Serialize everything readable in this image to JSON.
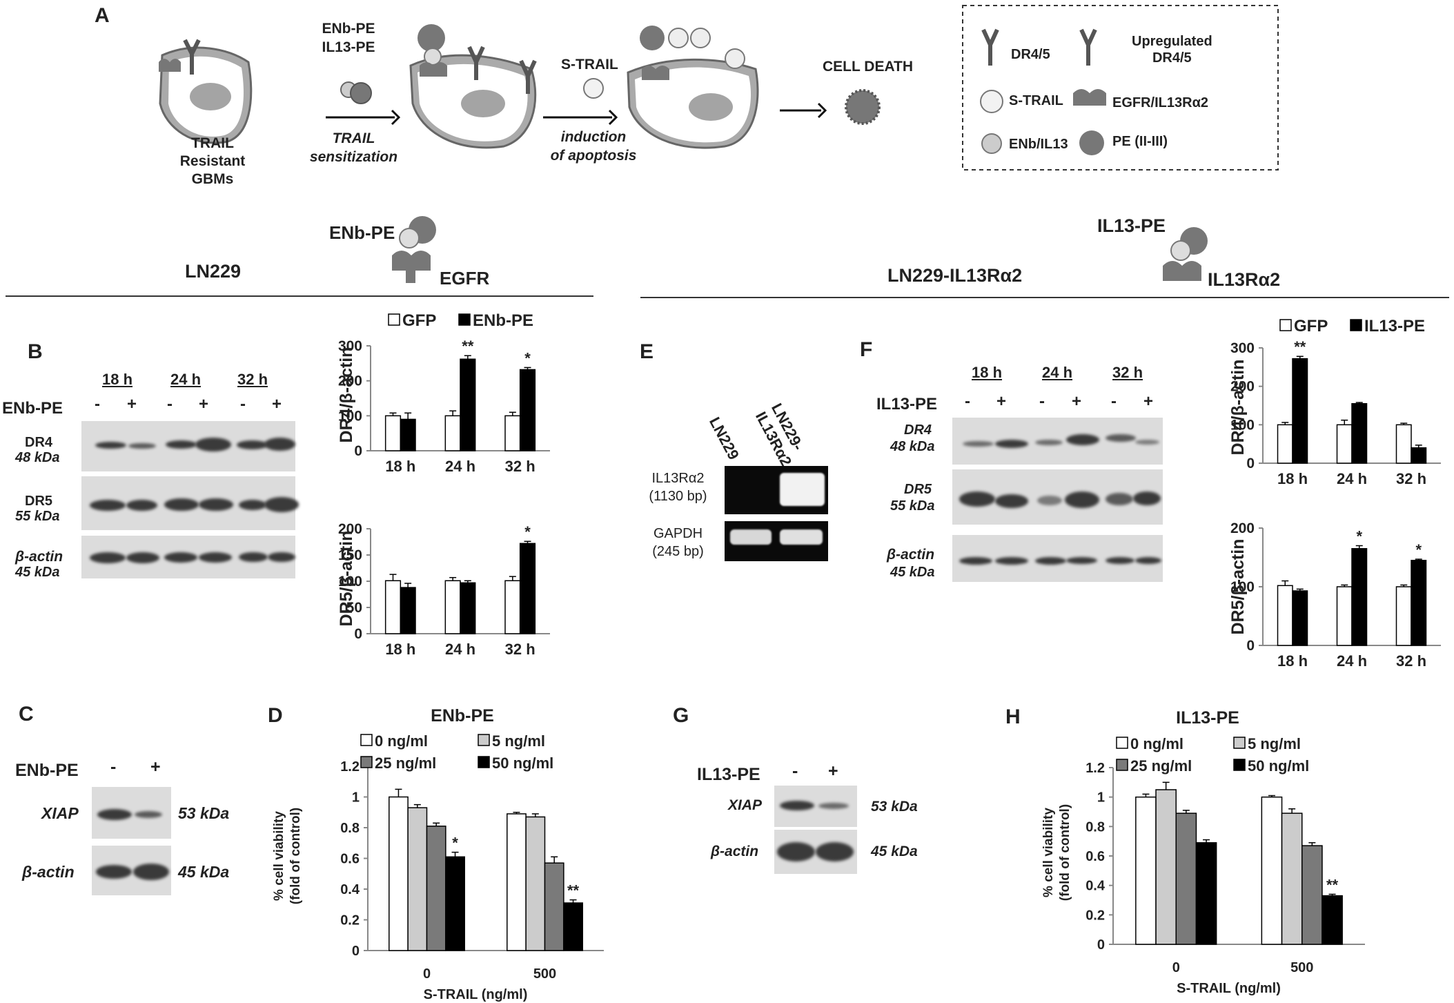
{
  "panelA": {
    "letter": "A",
    "cell1_label": [
      "TRAIL",
      "Resistant GBMs"
    ],
    "step1_top": [
      "ENb-PE",
      "IL13-PE"
    ],
    "step1_bottom": [
      "TRAIL",
      "sensitization"
    ],
    "step2_top": "S-TRAIL",
    "step2_bottom": [
      "induction",
      "of apoptosis"
    ],
    "death_label": "CELL DEATH",
    "legend": {
      "dr45": "DR4/5",
      "upreg": [
        "Upregulated",
        "DR4/5"
      ],
      "strail": "S-TRAIL",
      "egfr": "EGFR/IL13Rα2",
      "enb": "ENb/IL13",
      "pe": "PE (II-III)"
    }
  },
  "left_header": {
    "cell": "LN229",
    "toxin": "ENb-PE",
    "receptor": "EGFR"
  },
  "right_header": {
    "cell": "LN229-IL13Rα2",
    "toxin": "IL13-PE",
    "receptor": "IL13Rα2"
  },
  "panelB": {
    "letter": "B",
    "times": [
      "18 h",
      "24 h",
      "32 h"
    ],
    "treatment": "ENb-PE",
    "signs": [
      "-",
      "+",
      "-",
      "+",
      "-",
      "+"
    ],
    "rows": [
      {
        "name": "DR4",
        "kda": "48 kDa"
      },
      {
        "name": "DR5",
        "kda": "55 kDa"
      },
      {
        "name": "β-actin",
        "kda": "45 kDa"
      }
    ]
  },
  "panelE": {
    "letter": "E",
    "lanes": [
      "LN229",
      "LN229-IL13Rα2"
    ],
    "rows": [
      {
        "name": "IL13Rα2",
        "size": "(1130 bp)"
      },
      {
        "name": "GAPDH",
        "size": "(245 bp)"
      }
    ]
  },
  "panelF": {
    "letter": "F",
    "times": [
      "18 h",
      "24 h",
      "32 h"
    ],
    "treatment": "IL13-PE",
    "signs": [
      "-",
      "+",
      "-",
      "+",
      "-",
      "+"
    ],
    "rows": [
      {
        "name": "DR4",
        "kda": "48 kDa"
      },
      {
        "name": "DR5",
        "kda": "55 kDa"
      },
      {
        "name": "β-actin",
        "kda": "45 kDa"
      }
    ]
  },
  "panelC": {
    "letter": "C",
    "treatment": "ENb-PE",
    "signs": [
      "-",
      "+"
    ],
    "rows": [
      {
        "name": "XIAP",
        "kda": "53 kDa"
      },
      {
        "name": "β-actin",
        "kda": "45 kDa"
      }
    ]
  },
  "panelG": {
    "letter": "G",
    "treatment": "IL13-PE",
    "signs": [
      "-",
      "+"
    ],
    "rows": [
      {
        "name": "XIAP",
        "kda": "53 kDa"
      },
      {
        "name": "β-actin",
        "kda": "45 kDa"
      }
    ]
  },
  "panelD_letter": "D",
  "panelH_letter": "H",
  "chart_data": [
    {
      "id": "B-DR4",
      "type": "bar",
      "ylabel": "DR4/β-actin",
      "categories": [
        "18 h",
        "24 h",
        "32 h"
      ],
      "ylim": [
        0,
        300
      ],
      "yticks": [
        0,
        100,
        200,
        300
      ],
      "series": [
        {
          "name": "GFP",
          "color": "#ffffff",
          "values": [
            100,
            100,
            100
          ],
          "err": [
            8,
            14,
            10
          ]
        },
        {
          "name": "ENb-PE",
          "color": "#000000",
          "values": [
            90,
            262,
            232
          ],
          "err": [
            18,
            10,
            6
          ]
        }
      ],
      "stars": [
        "",
        "**",
        "*"
      ]
    },
    {
      "id": "B-DR5",
      "type": "bar",
      "ylabel": "DR5/β-actin",
      "categories": [
        "18 h",
        "24 h",
        "32 h"
      ],
      "ylim": [
        0,
        200
      ],
      "yticks": [
        0,
        50,
        100,
        150,
        200
      ],
      "series": [
        {
          "name": "GFP",
          "color": "#ffffff",
          "values": [
            101,
            101,
            101
          ],
          "err": [
            12,
            6,
            8
          ]
        },
        {
          "name": "ENb-PE",
          "color": "#000000",
          "values": [
            88,
            97,
            172
          ],
          "err": [
            8,
            4,
            4
          ]
        }
      ],
      "stars": [
        "",
        "",
        "*"
      ]
    },
    {
      "id": "F-DR4",
      "type": "bar",
      "ylabel": "DR4/β-actin",
      "categories": [
        "18 h",
        "24 h",
        "32 h"
      ],
      "ylim": [
        0,
        300
      ],
      "yticks": [
        0,
        100,
        200,
        300
      ],
      "series": [
        {
          "name": "GFP",
          "color": "#ffffff",
          "values": [
            100,
            100,
            100
          ],
          "err": [
            6,
            12,
            4
          ]
        },
        {
          "name": "IL13-PE",
          "color": "#000000",
          "values": [
            272,
            155,
            40
          ],
          "err": [
            6,
            3,
            7
          ]
        }
      ],
      "stars": [
        "**",
        "",
        ""
      ]
    },
    {
      "id": "F-DR5",
      "type": "bar",
      "ylabel": "DR5/β-actin",
      "categories": [
        "18 h",
        "24 h",
        "32 h"
      ],
      "ylim": [
        0,
        200
      ],
      "yticks": [
        0,
        100,
        200
      ],
      "series": [
        {
          "name": "GFP",
          "color": "#ffffff",
          "values": [
            102,
            100,
            100
          ],
          "err": [
            8,
            3,
            3
          ]
        },
        {
          "name": "IL13-PE",
          "color": "#000000",
          "values": [
            93,
            165,
            145
          ],
          "err": [
            3,
            5,
            2
          ]
        }
      ],
      "stars": [
        "",
        "*",
        "*"
      ]
    },
    {
      "id": "D",
      "type": "bar",
      "title": "ENb-PE",
      "ylabel": "% cell viability (fold of control)",
      "xlabel": "S-TRAIL (ng/ml)",
      "categories": [
        "0",
        "500"
      ],
      "ylim": [
        0,
        1.2
      ],
      "yticks": [
        0,
        0.2,
        0.4,
        0.6,
        0.8,
        1,
        1.2
      ],
      "series": [
        {
          "name": "0 ng/ml",
          "color": "#ffffff",
          "values": [
            1.0,
            0.89
          ],
          "err": [
            0.05,
            0.01
          ]
        },
        {
          "name": "5 ng/ml",
          "color": "#cccccc",
          "values": [
            0.93,
            0.87
          ],
          "err": [
            0.02,
            0.02
          ]
        },
        {
          "name": "25 ng/ml",
          "color": "#7a7a7a",
          "values": [
            0.81,
            0.57
          ],
          "err": [
            0.02,
            0.04
          ]
        },
        {
          "name": "50 ng/ml",
          "color": "#000000",
          "values": [
            0.61,
            0.31
          ],
          "err": [
            0.03,
            0.02
          ]
        }
      ],
      "stars": [
        "*",
        "**"
      ]
    },
    {
      "id": "H",
      "type": "bar",
      "title": "IL13-PE",
      "ylabel": "% cell viability (fold of control)",
      "xlabel": "S-TRAIL (ng/ml)",
      "categories": [
        "0",
        "500"
      ],
      "ylim": [
        0,
        1.2
      ],
      "yticks": [
        0,
        0.2,
        0.4,
        0.6,
        0.8,
        1,
        1.2
      ],
      "series": [
        {
          "name": "0 ng/ml",
          "color": "#ffffff",
          "values": [
            1.0,
            1.0
          ],
          "err": [
            0.02,
            0.01
          ]
        },
        {
          "name": "5 ng/ml",
          "color": "#cccccc",
          "values": [
            1.05,
            0.89
          ],
          "err": [
            0.05,
            0.03
          ]
        },
        {
          "name": "25 ng/ml",
          "color": "#7a7a7a",
          "values": [
            0.89,
            0.67
          ],
          "err": [
            0.02,
            0.02
          ]
        },
        {
          "name": "50 ng/ml",
          "color": "#000000",
          "values": [
            0.69,
            0.33
          ],
          "err": [
            0.02,
            0.01
          ]
        }
      ],
      "stars": [
        "",
        "**"
      ]
    }
  ]
}
